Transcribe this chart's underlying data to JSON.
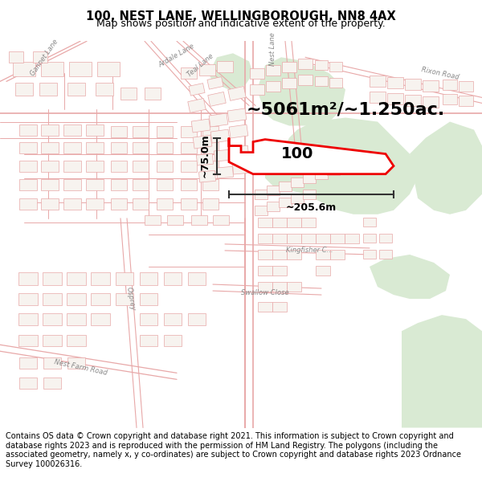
{
  "title_line1": "100, NEST LANE, WELLINGBOROUGH, NN8 4AX",
  "title_line2": "Map shows position and indicative extent of the property.",
  "area_text": "~5061m²/~1.250ac.",
  "label_100": "100",
  "dim_vertical": "~75.0m",
  "dim_horizontal": "~205.6m",
  "footer_text": "Contains OS data © Crown copyright and database right 2021. This information is subject to Crown copyright and database rights 2023 and is reproduced with the permission of HM Land Registry. The polygons (including the associated geometry, namely x, y co-ordinates) are subject to Crown copyright and database rights 2023 Ordnance Survey 100026316.",
  "map_bg": "#f7f3ef",
  "street_color": "#e8a8a8",
  "building_edge": "#e8a8a8",
  "building_fill": "#f7f3ef",
  "green_fill": "#d9ead3",
  "green_dark": "#c5dbbf",
  "property_fill": "white",
  "property_edge": "#ee0000",
  "dim_color": "#333333",
  "title_fontsize": 10.5,
  "subtitle_fontsize": 9,
  "area_fontsize": 16,
  "label_fontsize": 14,
  "dim_fontsize": 9,
  "footer_fontsize": 7.0
}
